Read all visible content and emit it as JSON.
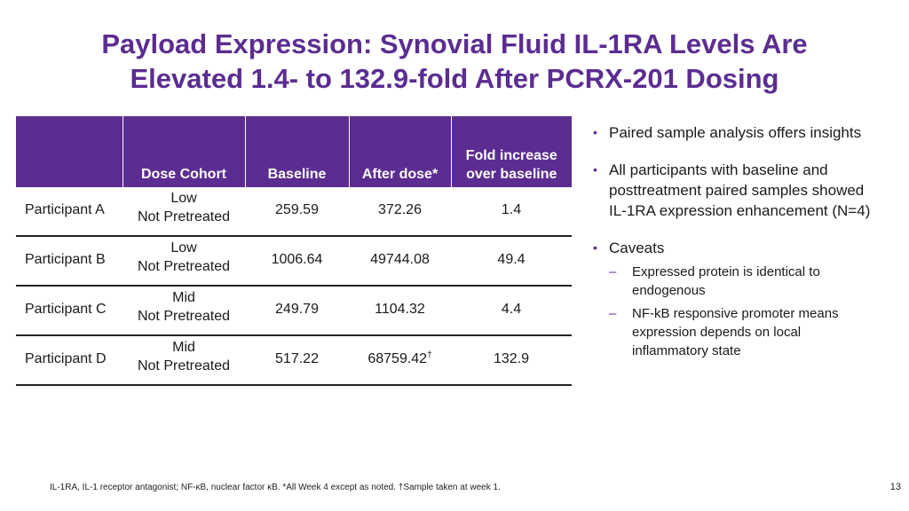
{
  "title": {
    "line1": "Payload Expression: Synovial Fluid IL-1RA Levels Are",
    "line2": "Elevated 1.4- to 132.9-fold After PCRX-201 Dosing"
  },
  "table": {
    "headers": [
      "",
      "Dose Cohort",
      "Baseline",
      "After dose*",
      "Fold increase",
      "over baseline"
    ],
    "rows": [
      {
        "participant": "Participant A",
        "dose": "Low",
        "pretreat": "Not Pretreated",
        "baseline": "259.59",
        "after": "372.26",
        "mark": "",
        "fold": "1.4"
      },
      {
        "participant": "Participant B",
        "dose": "Low",
        "pretreat": "Not Pretreated",
        "baseline": "1006.64",
        "after": "49744.08",
        "mark": "",
        "fold": "49.4"
      },
      {
        "participant": "Participant C",
        "dose": "Mid",
        "pretreat": "Not Pretreated",
        "baseline": "249.79",
        "after": "1104.32",
        "mark": "",
        "fold": "4.4"
      },
      {
        "participant": "Participant D",
        "dose": "Mid",
        "pretreat": "Not Pretreated",
        "baseline": "517.22",
        "after": "68759.42",
        "mark": "†",
        "fold": "132.9"
      }
    ]
  },
  "bullets": {
    "b1": "Paired sample analysis offers insights",
    "b2": "All participants with baseline and posttreatment paired samples showed IL-1RA expression enhancement (N=4)",
    "b3": "Caveats",
    "sub1": "Expressed protein is identical to endogenous",
    "sub2": "NF-kB responsive promoter means expression depends on local inflammatory state"
  },
  "footnote": "IL-1RA, IL-1 receptor antagonist; NF-κB, nuclear factor κB. *All Week 4 except as noted. †Sample taken at week 1.",
  "page_number": "13",
  "colors": {
    "accent": "#5b2d91"
  }
}
